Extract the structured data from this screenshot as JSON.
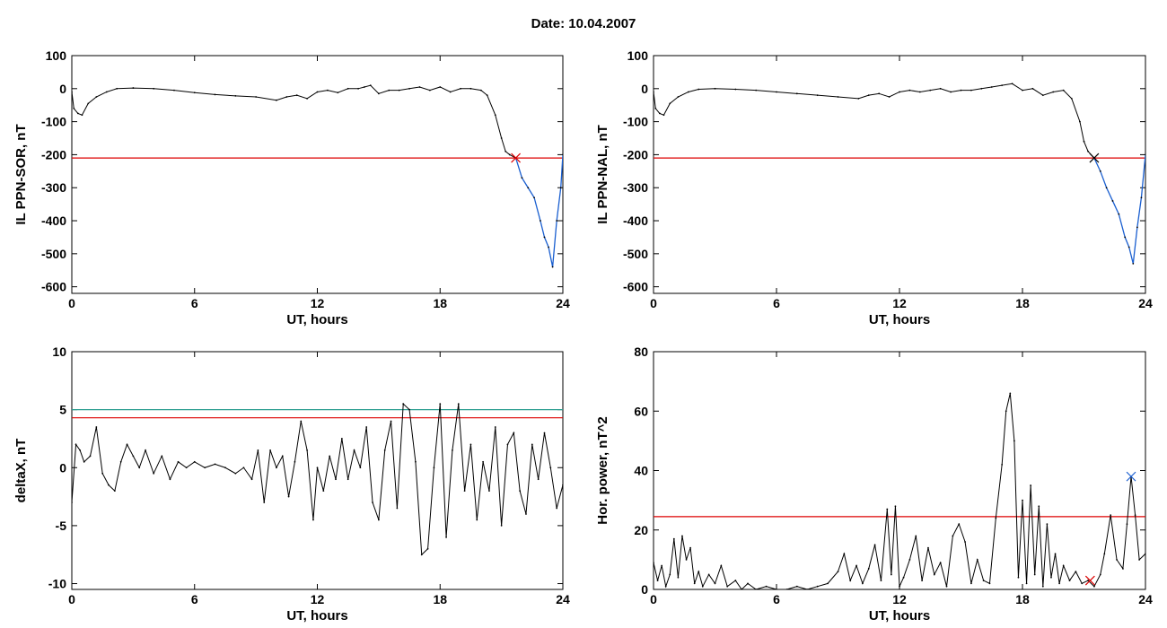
{
  "title": "Date:  10.04.2007",
  "chart_data": [
    {
      "type": "line",
      "ylabel": "IL PPN-SOR, nT",
      "xlabel": "UT, hours",
      "xlim": [
        0,
        24
      ],
      "ylim": [
        -620,
        100
      ],
      "xticks": [
        0,
        6,
        12,
        18,
        24
      ],
      "yticks": [
        100,
        0,
        -100,
        -200,
        -300,
        -400,
        -500,
        -600
      ],
      "threshold_lines": [
        {
          "y": -210,
          "color": "#dd0000"
        }
      ],
      "markers": [
        {
          "x": 21.7,
          "y": -210,
          "symbol": "x",
          "color": "#dd0000"
        }
      ],
      "colors": {
        "series": "#000000",
        "highlight": "#1a5fd0"
      },
      "series": [
        {
          "x": [
            0.0,
            0.1,
            0.3,
            0.5,
            0.8,
            1.2,
            1.7,
            2.2,
            3.0,
            4.0,
            5.0,
            6.0,
            7.0,
            8.0,
            9.0,
            10.0,
            10.5,
            11.0,
            11.5,
            12.0,
            12.5,
            13.0,
            13.5,
            14.0,
            14.3,
            14.6,
            15.0,
            15.5,
            16.0,
            16.5,
            17.0,
            17.5,
            18.0,
            18.5,
            19.0,
            19.5,
            20.0,
            20.3,
            20.7,
            21.0,
            21.2,
            21.4,
            21.7,
            22.0,
            22.3,
            22.6,
            22.9,
            23.1,
            23.3,
            23.5,
            23.7,
            23.9,
            24.0
          ],
          "y": [
            -10,
            -60,
            -75,
            -80,
            -45,
            -25,
            -10,
            0,
            2,
            0,
            -5,
            -12,
            -18,
            -22,
            -25,
            -35,
            -25,
            -20,
            -30,
            -10,
            -5,
            -12,
            0,
            0,
            5,
            10,
            -15,
            -5,
            -5,
            0,
            5,
            -5,
            5,
            -10,
            0,
            0,
            -5,
            -20,
            -80,
            -150,
            -190,
            -200,
            -210,
            -270,
            -300,
            -330,
            -400,
            -450,
            -480,
            -540,
            -400,
            -300,
            -200
          ],
          "highlight_from_x": 21.7
        }
      ]
    },
    {
      "type": "line",
      "ylabel": "IL PPN-NAL, nT",
      "xlabel": "UT, hours",
      "xlim": [
        0,
        24
      ],
      "ylim": [
        -620,
        100
      ],
      "xticks": [
        0,
        6,
        12,
        18,
        24
      ],
      "yticks": [
        100,
        0,
        -100,
        -200,
        -300,
        -400,
        -500,
        -600
      ],
      "threshold_lines": [
        {
          "y": -210,
          "color": "#dd0000"
        }
      ],
      "markers": [
        {
          "x": 21.5,
          "y": -210,
          "symbol": "x",
          "color": "#000000"
        }
      ],
      "colors": {
        "series": "#000000",
        "highlight": "#1a5fd0"
      },
      "series": [
        {
          "x": [
            0.0,
            0.1,
            0.3,
            0.5,
            0.8,
            1.2,
            1.7,
            2.2,
            3.0,
            4.0,
            5.0,
            6.0,
            7.0,
            8.0,
            9.0,
            10.0,
            10.5,
            11.0,
            11.5,
            12.0,
            12.5,
            13.0,
            13.5,
            14.0,
            14.5,
            15.0,
            15.5,
            16.0,
            16.5,
            17.0,
            17.5,
            18.0,
            18.5,
            19.0,
            19.5,
            20.0,
            20.4,
            20.8,
            21.0,
            21.2,
            21.5,
            21.8,
            22.1,
            22.4,
            22.7,
            23.0,
            23.2,
            23.4,
            23.6,
            23.8,
            24.0
          ],
          "y": [
            -10,
            -60,
            -75,
            -80,
            -45,
            -25,
            -10,
            -2,
            0,
            -2,
            -5,
            -10,
            -15,
            -20,
            -25,
            -30,
            -20,
            -15,
            -25,
            -10,
            -5,
            -10,
            -5,
            0,
            -10,
            -5,
            -5,
            0,
            5,
            10,
            15,
            -5,
            0,
            -20,
            -10,
            -5,
            -30,
            -100,
            -160,
            -190,
            -210,
            -250,
            -300,
            -340,
            -380,
            -450,
            -480,
            -530,
            -420,
            -330,
            -200
          ],
          "highlight_from_x": 21.5
        }
      ]
    },
    {
      "type": "line",
      "ylabel": "deltaX, nT",
      "xlabel": "UT, hours",
      "xlim": [
        0,
        24
      ],
      "ylim": [
        -10.5,
        10
      ],
      "xticks": [
        0,
        6,
        12,
        18,
        24
      ],
      "yticks": [
        10,
        5,
        0,
        -5,
        -10
      ],
      "threshold_lines": [
        {
          "y": 5,
          "color": "#2a9d8f"
        },
        {
          "y": 4.3,
          "color": "#dd0000"
        }
      ],
      "markers": [],
      "colors": {
        "series": "#000000"
      },
      "series": [
        {
          "x": [
            0.0,
            0.2,
            0.4,
            0.6,
            0.9,
            1.2,
            1.5,
            1.8,
            2.1,
            2.4,
            2.7,
            3.0,
            3.3,
            3.6,
            4.0,
            4.4,
            4.8,
            5.2,
            5.6,
            6.0,
            6.5,
            7.0,
            7.5,
            8.0,
            8.4,
            8.8,
            9.1,
            9.4,
            9.7,
            10.0,
            10.3,
            10.6,
            10.9,
            11.2,
            11.5,
            11.8,
            12.0,
            12.3,
            12.6,
            12.9,
            13.2,
            13.5,
            13.8,
            14.1,
            14.4,
            14.7,
            15.0,
            15.3,
            15.6,
            15.9,
            16.2,
            16.5,
            16.8,
            17.1,
            17.4,
            17.7,
            18.0,
            18.3,
            18.6,
            18.9,
            19.2,
            19.5,
            19.8,
            20.1,
            20.4,
            20.7,
            21.0,
            21.3,
            21.6,
            21.9,
            22.2,
            22.5,
            22.8,
            23.1,
            23.4,
            23.7,
            24.0
          ],
          "y": [
            -3.0,
            2.0,
            1.5,
            0.5,
            1.0,
            3.5,
            -0.5,
            -1.5,
            -2.0,
            0.5,
            2.0,
            1.0,
            0.0,
            1.5,
            -0.5,
            1.0,
            -1.0,
            0.5,
            0.0,
            0.5,
            0.0,
            0.3,
            0.0,
            -0.5,
            0.0,
            -1.0,
            1.5,
            -3.0,
            1.5,
            0.0,
            1.0,
            -2.5,
            0.5,
            4.0,
            1.5,
            -4.5,
            0.0,
            -2.0,
            1.0,
            -1.0,
            2.5,
            -1.0,
            1.5,
            0.0,
            3.5,
            -3.0,
            -4.5,
            1.5,
            4.0,
            -3.5,
            5.5,
            5.0,
            0.5,
            -7.5,
            -7.0,
            0.0,
            5.5,
            -6.0,
            1.5,
            5.5,
            -2.0,
            2.0,
            -4.5,
            0.5,
            -2.0,
            3.5,
            -5.0,
            2.0,
            3.0,
            -2.0,
            -4.0,
            2.0,
            -1.0,
            3.0,
            0.0,
            -3.5,
            -1.5
          ]
        }
      ]
    },
    {
      "type": "line",
      "ylabel": "Hor. power, nT^2",
      "xlabel": "UT, hours",
      "xlim": [
        0,
        24
      ],
      "ylim": [
        0,
        80
      ],
      "xticks": [
        0,
        6,
        12,
        18,
        24
      ],
      "yticks": [
        80,
        60,
        40,
        20,
        0
      ],
      "threshold_lines": [
        {
          "y": 24.5,
          "color": "#dd0000"
        }
      ],
      "markers": [
        {
          "x": 23.3,
          "y": 38,
          "symbol": "x",
          "color": "#1a5fd0"
        },
        {
          "x": 21.3,
          "y": 3,
          "symbol": "x",
          "color": "#dd0000"
        }
      ],
      "colors": {
        "series": "#000000"
      },
      "series": [
        {
          "x": [
            0.0,
            0.2,
            0.4,
            0.6,
            0.8,
            1.0,
            1.2,
            1.4,
            1.6,
            1.8,
            2.0,
            2.2,
            2.4,
            2.7,
            3.0,
            3.3,
            3.6,
            4.0,
            4.3,
            4.6,
            5.0,
            5.5,
            6.0,
            6.5,
            7.0,
            7.5,
            8.0,
            8.5,
            9.0,
            9.3,
            9.6,
            9.9,
            10.2,
            10.5,
            10.8,
            11.1,
            11.4,
            11.6,
            11.8,
            12.0,
            12.2,
            12.5,
            12.8,
            13.1,
            13.4,
            13.7,
            14.0,
            14.3,
            14.6,
            14.9,
            15.2,
            15.5,
            15.8,
            16.1,
            16.4,
            16.7,
            17.0,
            17.2,
            17.4,
            17.6,
            17.8,
            18.0,
            18.2,
            18.4,
            18.6,
            18.8,
            19.0,
            19.2,
            19.4,
            19.6,
            19.8,
            20.0,
            20.3,
            20.6,
            20.9,
            21.2,
            21.5,
            21.8,
            22.0,
            22.3,
            22.6,
            22.9,
            23.1,
            23.3,
            23.5,
            23.7,
            24.0
          ],
          "y": [
            9,
            3,
            8,
            1,
            5,
            17,
            4,
            18,
            10,
            14,
            2,
            6,
            1,
            5,
            2,
            8,
            1,
            3,
            0,
            2,
            0,
            1,
            0,
            0,
            1,
            0,
            1,
            2,
            6,
            12,
            3,
            8,
            2,
            7,
            15,
            3,
            27,
            5,
            28,
            1,
            4,
            10,
            18,
            3,
            14,
            5,
            9,
            1,
            18,
            22,
            16,
            2,
            10,
            3,
            2,
            24,
            42,
            60,
            66,
            50,
            4,
            30,
            2,
            35,
            5,
            28,
            1,
            22,
            4,
            12,
            2,
            8,
            3,
            6,
            2,
            3,
            1,
            5,
            12,
            25,
            10,
            7,
            22,
            38,
            25,
            10,
            12
          ]
        }
      ]
    }
  ]
}
